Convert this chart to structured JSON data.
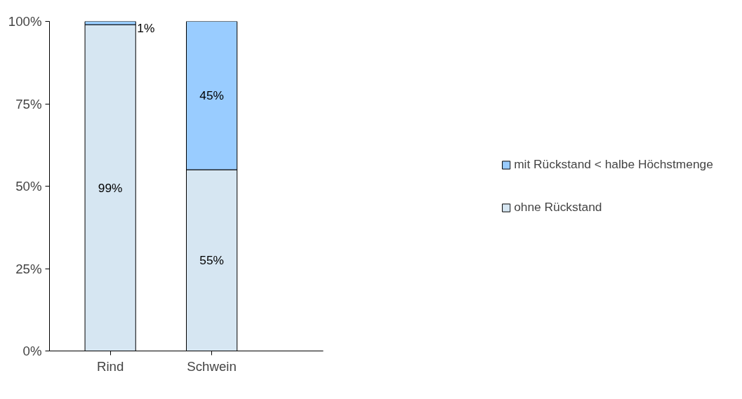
{
  "chart_data": {
    "type": "bar",
    "stacked": true,
    "categories": [
      "Rind",
      "Schwein"
    ],
    "series": [
      {
        "name": "ohne Rückstand",
        "color": "#d6e6f2",
        "values": [
          99,
          55
        ],
        "value_labels": [
          "99%",
          "55%"
        ]
      },
      {
        "name": "mit Rückstand < halbe Höchstmenge",
        "color": "#99ccff",
        "values": [
          1,
          45
        ],
        "value_labels": [
          "1%",
          "45%"
        ]
      }
    ],
    "ylim": [
      0,
      100
    ],
    "yticks": [
      {
        "value": 0,
        "label": "0%"
      },
      {
        "value": 25,
        "label": "25%"
      },
      {
        "value": 50,
        "label": "50%"
      },
      {
        "value": 75,
        "label": "75%"
      },
      {
        "value": 100,
        "label": "100%"
      }
    ],
    "grid": false,
    "legend": "right"
  }
}
